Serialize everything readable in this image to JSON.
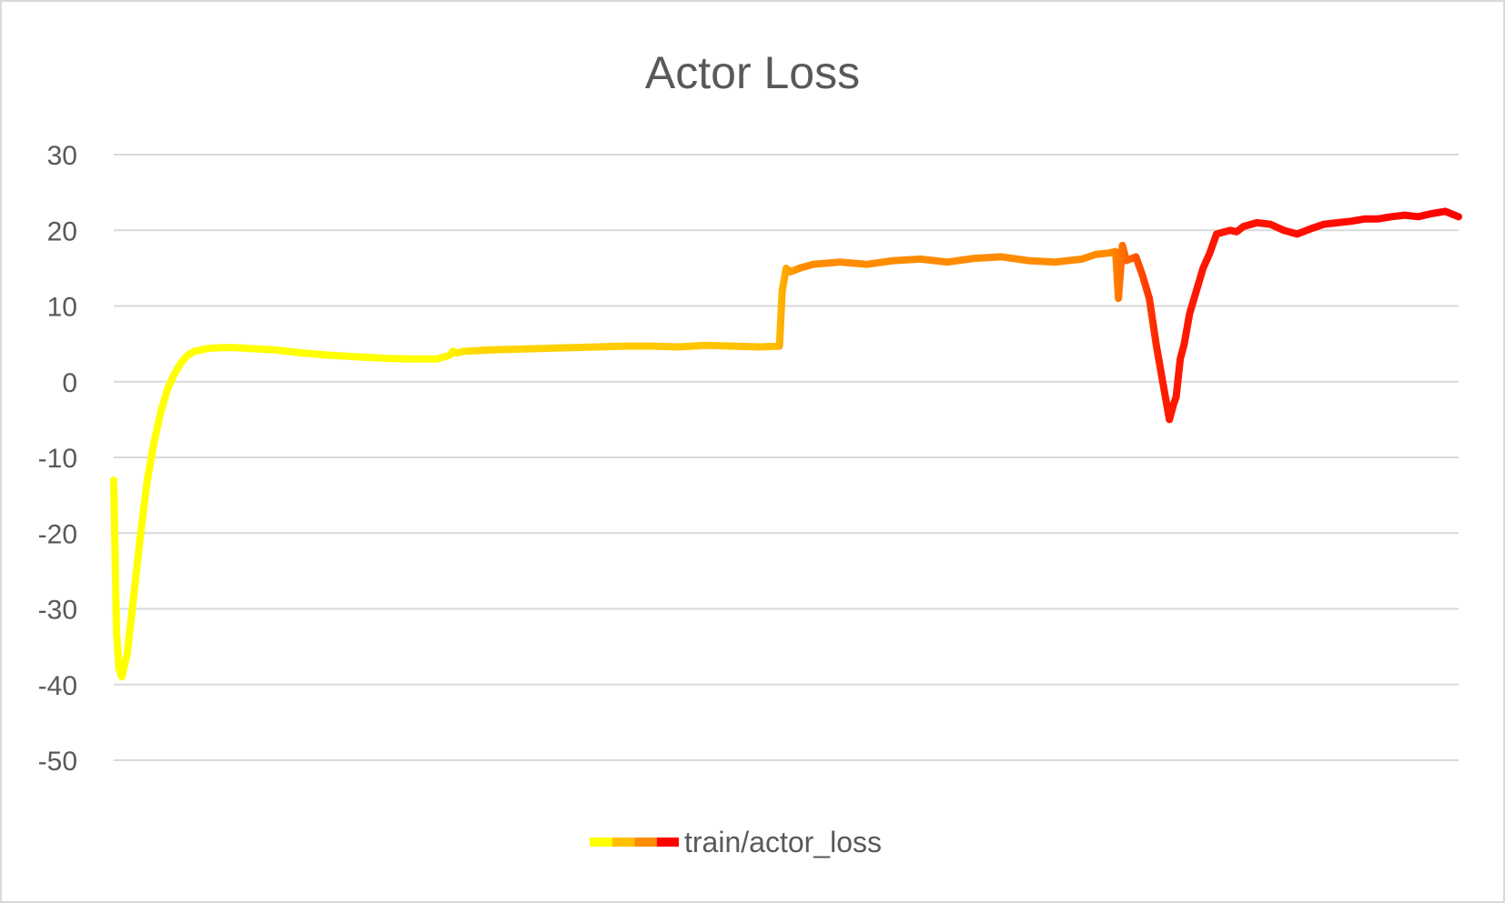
{
  "chart_data": {
    "type": "line",
    "title": "Actor Loss",
    "xlabel": "",
    "ylabel": "",
    "ylim": [
      -50,
      30
    ],
    "yticks": [
      30,
      20,
      10,
      0,
      -10,
      -20,
      -30,
      -40,
      -50
    ],
    "ytick_labels": [
      "30",
      "20",
      "10",
      "0",
      "-10",
      "-20",
      "-30",
      "-40",
      "-50"
    ],
    "xlim": [
      0,
      100
    ],
    "grid": true,
    "legend_position": "bottom",
    "series": [
      {
        "name": "train/actor_loss",
        "gradient_colors": [
          "#ffff00",
          "#ffc000",
          "#ff8c00",
          "#ff0000"
        ],
        "x": [
          0,
          0.2,
          0.4,
          0.6,
          1.0,
          1.5,
          2.0,
          2.5,
          3.0,
          3.5,
          4.0,
          4.5,
          5.0,
          5.5,
          6.0,
          6.5,
          7.0,
          8.0,
          9.0,
          10.0,
          12.0,
          14.0,
          16.0,
          18.0,
          20.0,
          22.0,
          24.0,
          25.0,
          25.2,
          25.5,
          26.0,
          28.0,
          30.0,
          32.0,
          34.0,
          36.0,
          38.0,
          40.0,
          42.0,
          44.0,
          46.0,
          48.0,
          49.5,
          49.7,
          50.0,
          50.3,
          51.0,
          52.0,
          54.0,
          56.0,
          58.0,
          60.0,
          62.0,
          64.0,
          66.0,
          68.0,
          70.0,
          72.0,
          73.0,
          74.0,
          74.5,
          74.7,
          75.0,
          75.3,
          76.0,
          76.5,
          77.0,
          77.5,
          78.0,
          78.5,
          78.8,
          79.0,
          79.3,
          79.6,
          80.0,
          80.5,
          81.0,
          81.5,
          82.0,
          83.0,
          83.5,
          84.0,
          85.0,
          86.0,
          87.0,
          88.0,
          89.0,
          90.0,
          91.0,
          92.0,
          93.0,
          94.0,
          95.0,
          96.0,
          97.0,
          98.0,
          99.0,
          100.0
        ],
        "values": [
          -13,
          -33,
          -38,
          -39,
          -36,
          -28,
          -20,
          -13,
          -8,
          -4,
          -1,
          1,
          2.5,
          3.5,
          4,
          4.2,
          4.4,
          4.5,
          4.5,
          4.4,
          4.2,
          3.8,
          3.5,
          3.3,
          3.1,
          3.0,
          3.0,
          3.5,
          4.0,
          3.8,
          4.0,
          4.2,
          4.3,
          4.4,
          4.5,
          4.6,
          4.7,
          4.7,
          4.6,
          4.8,
          4.7,
          4.6,
          4.7,
          12,
          15,
          14.5,
          15,
          15.5,
          15.8,
          15.5,
          16,
          16.2,
          15.8,
          16.3,
          16.5,
          16.0,
          15.8,
          16.2,
          16.8,
          17,
          17.2,
          11,
          18,
          16,
          16.5,
          14,
          11,
          5,
          0,
          -5,
          -3,
          -2,
          3,
          5,
          9,
          12,
          15,
          17,
          19.5,
          20,
          19.8,
          20.5,
          21,
          20.8,
          20,
          19.5,
          20.2,
          20.8,
          21,
          21.2,
          21.5,
          21.5,
          21.8,
          22,
          21.8,
          22.2,
          22.5,
          21.8
        ]
      }
    ]
  }
}
